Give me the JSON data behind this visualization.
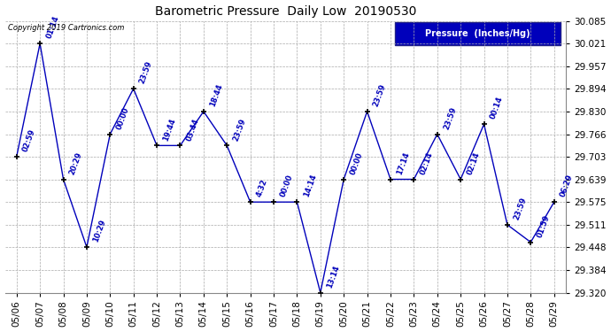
{
  "title": "Barometric Pressure  Daily Low  20190530",
  "copyright": "Copyright 2019 Cartronics.com",
  "legend_label": "Pressure  (Inches/Hg)",
  "dates": [
    "05/06",
    "05/07",
    "05/08",
    "05/09",
    "05/10",
    "05/11",
    "05/12",
    "05/13",
    "05/14",
    "05/15",
    "05/16",
    "05/17",
    "05/18",
    "05/19",
    "05/20",
    "05/21",
    "05/22",
    "05/23",
    "05/24",
    "05/25",
    "05/26",
    "05/27",
    "05/28",
    "05/29"
  ],
  "values": [
    29.703,
    30.021,
    29.639,
    29.448,
    29.766,
    29.894,
    29.734,
    29.734,
    29.83,
    29.734,
    29.575,
    29.575,
    29.575,
    29.32,
    29.639,
    29.83,
    29.639,
    29.639,
    29.766,
    29.639,
    29.794,
    29.511,
    29.462,
    29.575
  ],
  "times": [
    "02:59",
    "01:14",
    "20:29",
    "10:29",
    "00:00",
    "23:59",
    "19:44",
    "03:44",
    "18:44",
    "23:59",
    "4:32",
    "00:00",
    "14:14",
    "13:14",
    "00:00",
    "23:59",
    "17:14",
    "02:14",
    "23:59",
    "02:14",
    "00:14",
    "23:59",
    "01:59",
    "06:29"
  ],
  "ylim_min": 29.32,
  "ylim_max": 30.085,
  "yticks": [
    29.32,
    29.384,
    29.448,
    29.511,
    29.575,
    29.639,
    29.703,
    29.766,
    29.83,
    29.894,
    29.957,
    30.021,
    30.085
  ],
  "line_color": "#0000bb",
  "marker_color": "#000000",
  "bg_color": "#ffffff",
  "grid_color": "#aaaaaa",
  "legend_bg": "#0000bb",
  "legend_text_color": "#ffffff",
  "title_color": "#000000",
  "copyright_color": "#000000",
  "annotation_color": "#0000bb",
  "figwidth": 6.9,
  "figheight": 3.75,
  "dpi": 100
}
